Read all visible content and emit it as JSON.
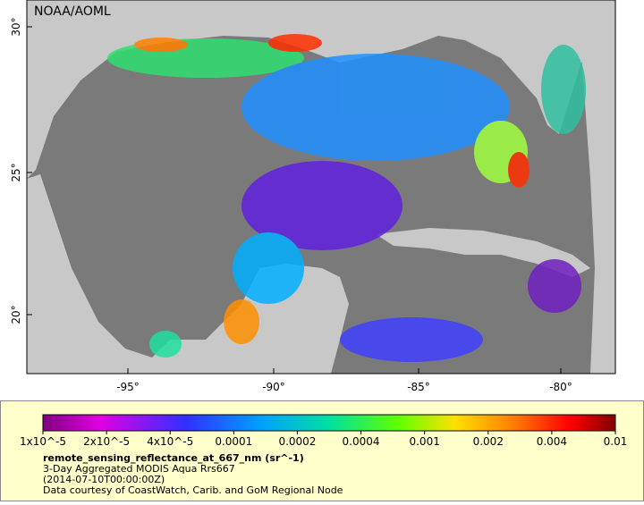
{
  "map": {
    "credit": "NOAA/AOML",
    "lat_ticks": [
      "30°",
      "25°",
      "20°"
    ],
    "lon_ticks": [
      "-95°",
      "-90°",
      "-85°",
      "-80°"
    ]
  },
  "legend": {
    "ticks": [
      "1x10^-5",
      "2x10^-5",
      "4x10^-5",
      "0.0001",
      "0.0002",
      "0.0004",
      "0.001",
      "0.002",
      "0.004",
      "0.01"
    ],
    "title": "remote_sensing_reflectance_at_667_nm (sr^-1)",
    "lines": [
      "3-Day Aggregated MODIS Aqua Rrs667",
      "(2014-07-10T00:00:00Z)",
      "Data courtesy of CoastWatch, Carib. and GoM Regional Node"
    ]
  }
}
